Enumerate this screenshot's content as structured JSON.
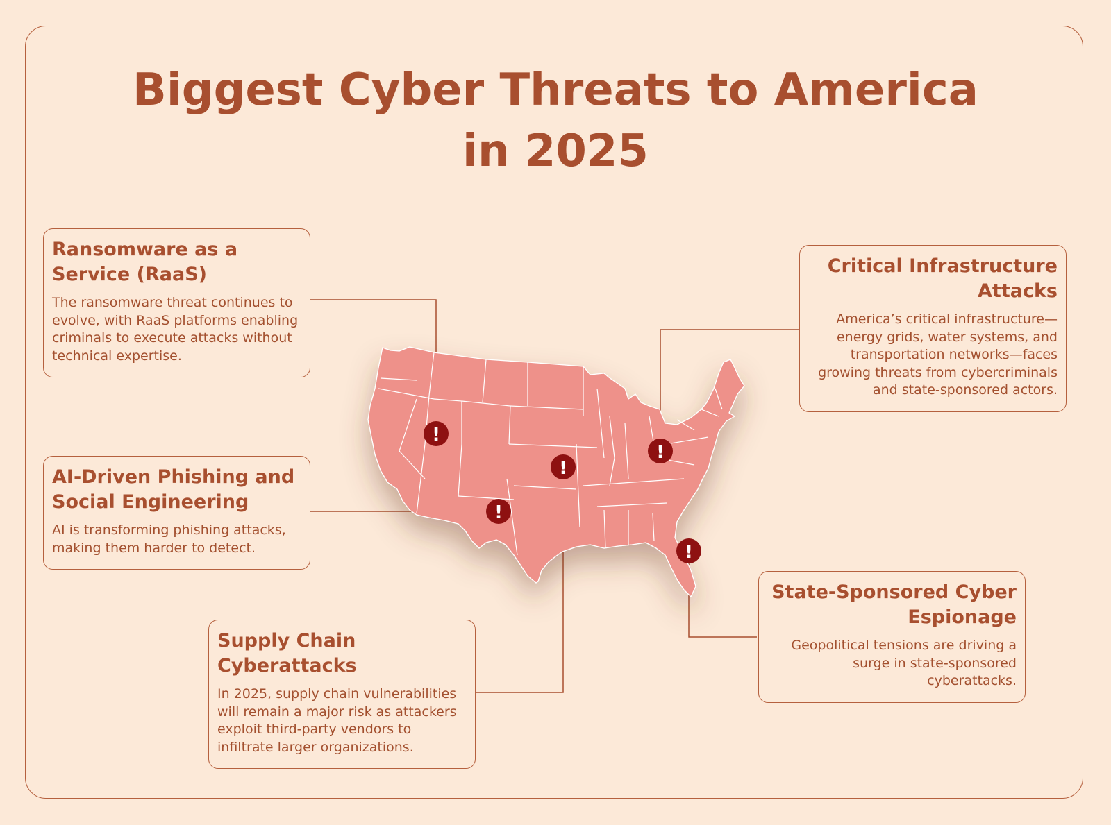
{
  "title_line1": "Biggest Cyber Threats to America",
  "title_line2": "in 2025",
  "colors": {
    "background": "#fce9d8",
    "accent": "#a84f2f",
    "map_fill": "#ee918a",
    "marker": "#8e1111"
  },
  "marker_icon": "exclamation-icon",
  "threats": [
    {
      "title": "Ransomware as a Service (RaaS)",
      "description": "The ransomware threat continues to evolve, with RaaS platforms enabling criminals to execute attacks without technical expertise."
    },
    {
      "title": "AI-Driven Phishing and Social Engineering",
      "description": "AI is transforming phishing attacks, making them harder to detect."
    },
    {
      "title": "Supply Chain Cyberattacks",
      "description": "In 2025, supply chain vulnerabilities will remain a major risk as attackers exploit third-party vendors to infiltrate larger organizations."
    },
    {
      "title": "Critical Infrastructure Attacks",
      "description": "America’s critical infrastructure—energy grids, water systems, and transportation networks—faces growing threats from cybercriminals and state-sponsored actors."
    },
    {
      "title": "State-Sponsored Cyber Espionage",
      "description": "Geopolitical tensions are driving a surge in state-sponsored cyberattacks."
    }
  ]
}
